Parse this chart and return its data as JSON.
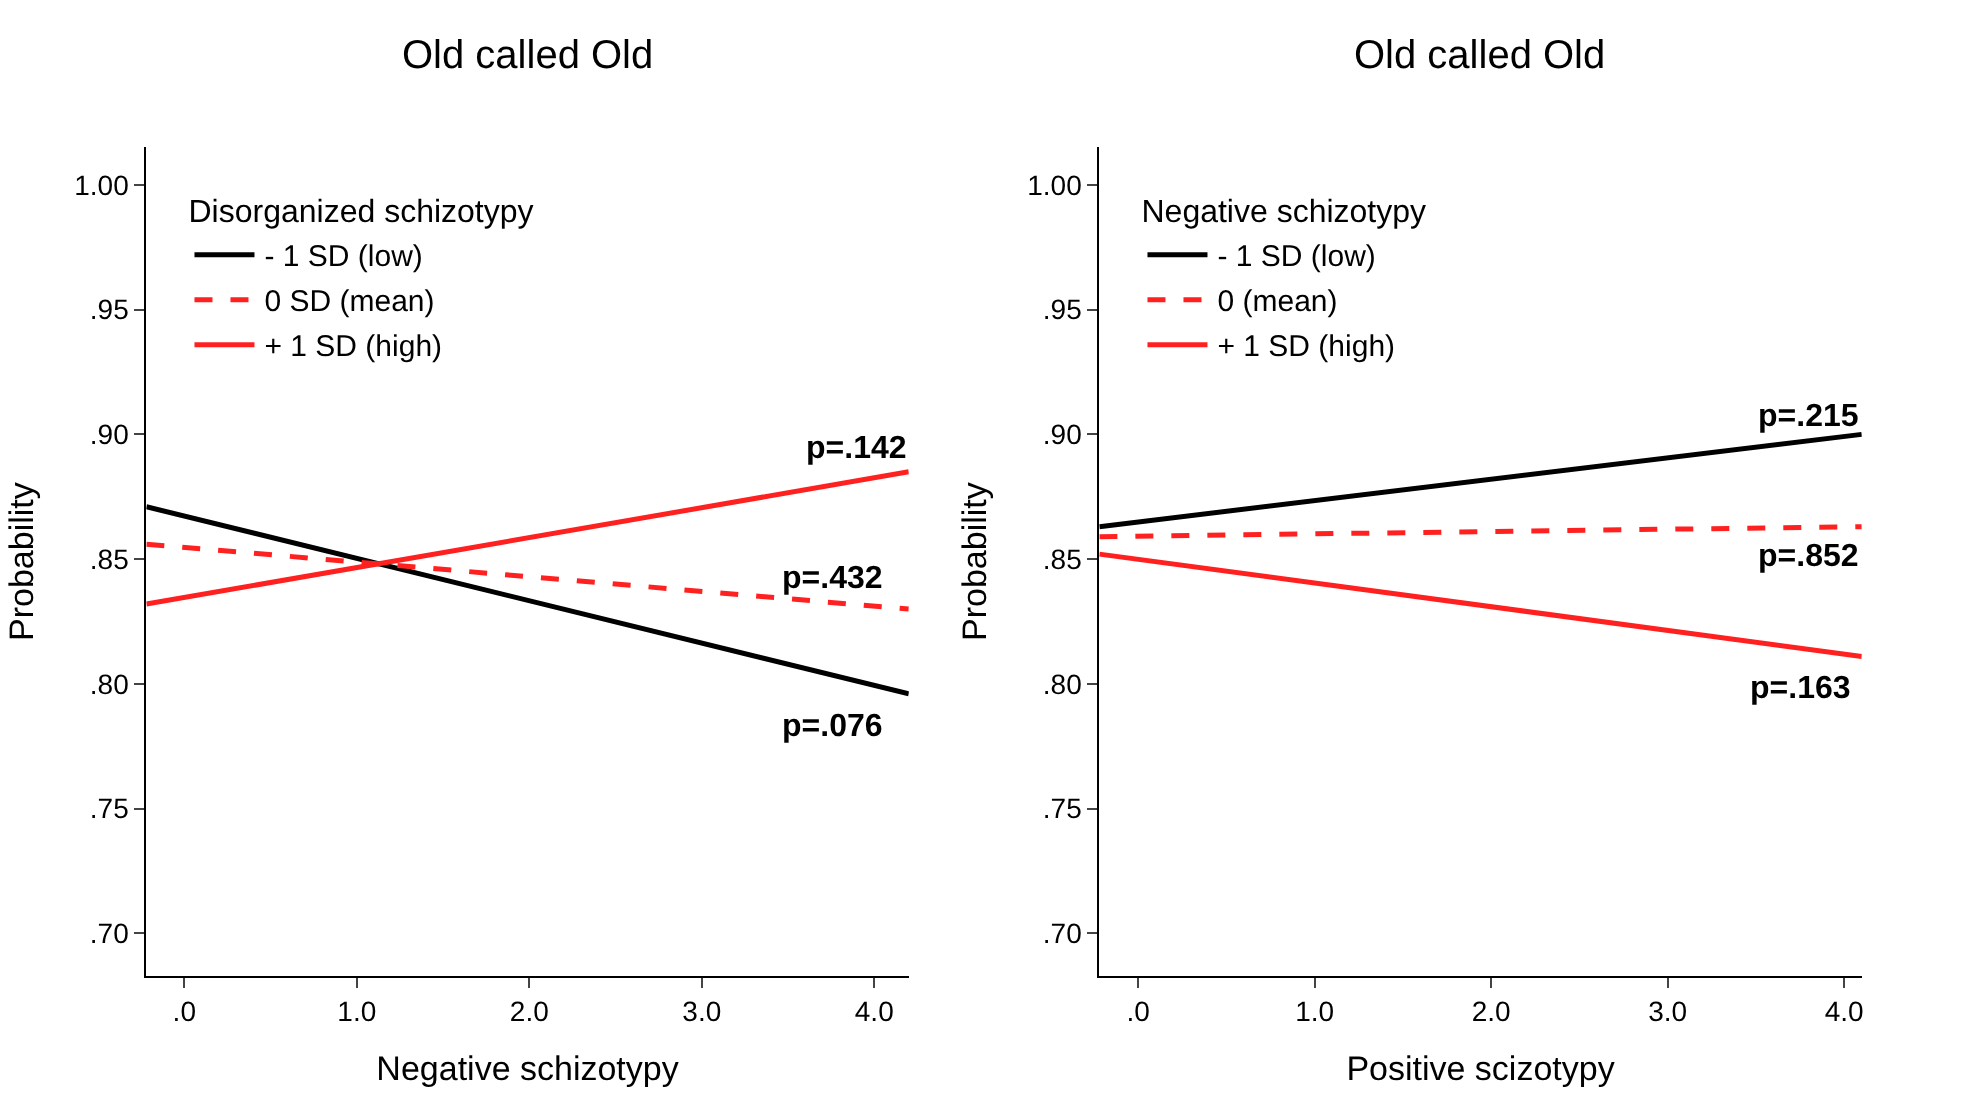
{
  "chart_data": [
    {
      "type": "line",
      "title": "Old called Old",
      "xlabel": "Negative schizotypy",
      "ylabel": "Probability",
      "legend_title": "Disorganized schizotypy",
      "legend": "top left",
      "xlim": [
        -0.22,
        4.2
      ],
      "xticks": [
        {
          "value": 0,
          "label": ".0"
        },
        {
          "value": 1,
          "label": "1.0"
        },
        {
          "value": 2,
          "label": "2.0"
        },
        {
          "value": 3,
          "label": "3.0"
        },
        {
          "value": 4,
          "label": "4.0"
        }
      ],
      "ylim": [
        0.683,
        1.015
      ],
      "yticks": [
        {
          "value": 0.7,
          "label": ".70"
        },
        {
          "value": 0.75,
          "label": ".75"
        },
        {
          "value": 0.8,
          "label": ".80"
        },
        {
          "value": 0.85,
          "label": ".85"
        },
        {
          "value": 0.9,
          "label": ".90"
        },
        {
          "value": 0.95,
          "label": ".95"
        },
        {
          "value": 1.0,
          "label": "1.00"
        }
      ],
      "series": [
        {
          "name": "- 1 SD (low)",
          "color": "#000000",
          "line_style": "solid",
          "x": [
            -0.22,
            4.2
          ],
          "values": [
            0.871,
            0.796
          ]
        },
        {
          "name": "0 SD (mean)",
          "color": "#ff2020",
          "line_style": "dashed",
          "x": [
            -0.22,
            4.2
          ],
          "values": [
            0.856,
            0.83
          ]
        },
        {
          "name": "+ 1 SD (high)",
          "color": "#ff2020",
          "line_style": "solid",
          "x": [
            -0.22,
            4.2
          ],
          "values": [
            0.832,
            0.885
          ]
        }
      ],
      "annotations": [
        "p=.142",
        "p=.432",
        "p=.076"
      ]
    },
    {
      "type": "line",
      "title": "Old called Old",
      "xlabel": "Positive scizotypy",
      "ylabel": "Probability",
      "legend_title": "Negative schizotypy",
      "legend": "top left",
      "xlim": [
        -0.22,
        4.1
      ],
      "xticks": [
        {
          "value": 0,
          "label": ".0"
        },
        {
          "value": 1,
          "label": "1.0"
        },
        {
          "value": 2,
          "label": "2.0"
        },
        {
          "value": 3,
          "label": "3.0"
        },
        {
          "value": 4,
          "label": "4.0"
        }
      ],
      "ylim": [
        0.683,
        1.015
      ],
      "yticks": [
        {
          "value": 0.7,
          "label": ".70"
        },
        {
          "value": 0.75,
          "label": ".75"
        },
        {
          "value": 0.8,
          "label": ".80"
        },
        {
          "value": 0.85,
          "label": ".85"
        },
        {
          "value": 0.9,
          "label": ".90"
        },
        {
          "value": 0.95,
          "label": ".95"
        },
        {
          "value": 1.0,
          "label": "1.00"
        }
      ],
      "series": [
        {
          "name": "- 1 SD (low)",
          "color": "#000000",
          "line_style": "solid",
          "x": [
            -0.22,
            4.1
          ],
          "values": [
            0.863,
            0.9
          ]
        },
        {
          "name": "0 (mean)",
          "color": "#ff2020",
          "line_style": "dashed",
          "x": [
            -0.22,
            4.1
          ],
          "values": [
            0.859,
            0.863
          ]
        },
        {
          "name": "+ 1 SD (high)",
          "color": "#ff2020",
          "line_style": "solid",
          "x": [
            -0.22,
            4.1
          ],
          "values": [
            0.852,
            0.811
          ]
        }
      ],
      "annotations": [
        "p=.215",
        "p=.852",
        "p=.163"
      ]
    }
  ]
}
